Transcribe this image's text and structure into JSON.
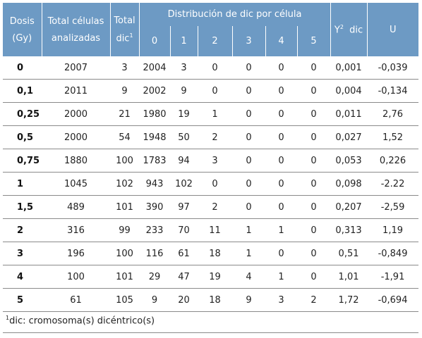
{
  "header": {
    "dose_line1": "Dosis",
    "dose_line2": "(Gy)",
    "total_cells_line1": "Total células",
    "total_cells_line2": "analizadas",
    "total_dic_line1": "Total",
    "total_dic_line2": "dic",
    "total_dic_sup": "1",
    "distribution": "Distribución de dic por célula",
    "dist_cols": [
      "0",
      "1",
      "2",
      "3",
      "4",
      "5"
    ],
    "y2_label": "Y",
    "y2_sup": "2",
    "y2_suffix": "dic",
    "u_label": "U"
  },
  "rows": [
    {
      "dose": "0",
      "total_cells": "2007",
      "total_dic": "3",
      "dist": [
        "2004",
        "3",
        "0",
        "0",
        "0",
        "0"
      ],
      "y2": "0,001",
      "u": "-0,039"
    },
    {
      "dose": "0,1",
      "total_cells": "2011",
      "total_dic": "9",
      "dist": [
        "2002",
        "9",
        "0",
        "0",
        "0",
        "0"
      ],
      "y2": "0,004",
      "u": "-0,134"
    },
    {
      "dose": "0,25",
      "total_cells": "2000",
      "total_dic": "21",
      "dist": [
        "1980",
        "19",
        "1",
        "0",
        "0",
        "0"
      ],
      "y2": "0,011",
      "u": "2,76"
    },
    {
      "dose": "0,5",
      "total_cells": "2000",
      "total_dic": "54",
      "dist": [
        "1948",
        "50",
        "2",
        "0",
        "0",
        "0"
      ],
      "y2": "0,027",
      "u": "1,52"
    },
    {
      "dose": "0,75",
      "total_cells": "1880",
      "total_dic": "100",
      "dist": [
        "1783",
        "94",
        "3",
        "0",
        "0",
        "0"
      ],
      "y2": "0,053",
      "u": "0,226"
    },
    {
      "dose": "1",
      "total_cells": "1045",
      "total_dic": "102",
      "dist": [
        "943",
        "102",
        "0",
        "0",
        "0",
        "0"
      ],
      "y2": "0,098",
      "u": "-2.22"
    },
    {
      "dose": "1,5",
      "total_cells": "489",
      "total_dic": "101",
      "dist": [
        "390",
        "97",
        "2",
        "0",
        "0",
        "0"
      ],
      "y2": "0,207",
      "u": "-2,59"
    },
    {
      "dose": "2",
      "total_cells": "316",
      "total_dic": "99",
      "dist": [
        "233",
        "70",
        "11",
        "1",
        "1",
        "0"
      ],
      "y2": "0,313",
      "u": "1,19"
    },
    {
      "dose": "3",
      "total_cells": "196",
      "total_dic": "100",
      "dist": [
        "116",
        "61",
        "18",
        "1",
        "0",
        "0"
      ],
      "y2": "0,51",
      "u": "-0,849"
    },
    {
      "dose": "4",
      "total_cells": "100",
      "total_dic": "101",
      "dist": [
        "29",
        "47",
        "19",
        "4",
        "1",
        "0"
      ],
      "y2": "1,01",
      "u": "-1,91"
    },
    {
      "dose": "5",
      "total_cells": "61",
      "total_dic": "105",
      "dist": [
        "9",
        "20",
        "18",
        "9",
        "3",
        "2"
      ],
      "y2": "1,72",
      "u": "-0,694"
    }
  ],
  "footnote": {
    "sup": "1",
    "text": "dic: cromosoma(s) dicéntrico(s)"
  }
}
